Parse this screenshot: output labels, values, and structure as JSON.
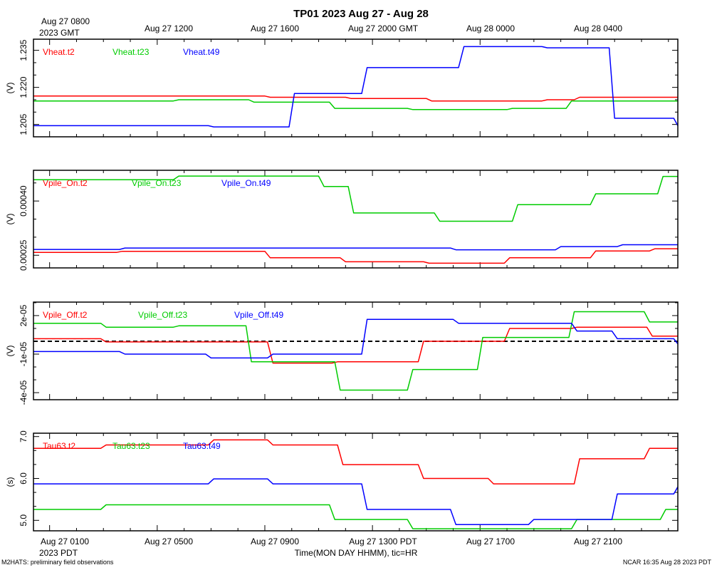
{
  "title": "TP01 2023 Aug 27 - Aug 28",
  "top_axis": {
    "first_label_line1": "Aug 27 0800",
    "first_label_line2": "2023 GMT",
    "labels": [
      "Aug 27 1200",
      "Aug 27 1600",
      "Aug 27 2000 GMT",
      "Aug 28 0000",
      "Aug 28 0400"
    ]
  },
  "bottom_axis": {
    "first_label_line1": "Aug 27 0100",
    "first_label_line2": "2023 PDT",
    "labels": [
      "Aug 27 0500",
      "Aug 27 0900",
      "Aug 27 1300 PDT",
      "Aug 27 1700",
      "Aug 27 2100"
    ],
    "xlabel": "Time(MON DAY HHMM), tic=HR"
  },
  "footer": {
    "left": "M2HATS: preliminary field observations",
    "right": "NCAR 16:35 Aug 28 2023 PDT"
  },
  "colors": {
    "t2": "#ff0000",
    "t23": "#00cc00",
    "t49": "#0000ff"
  },
  "chart_data": [
    {
      "type": "line",
      "x_unit": "hours since Aug 27 0100 PDT",
      "xlim": [
        -0.6,
        23.35
      ],
      "ylabel": "(V)",
      "ylim": [
        1.2,
        1.2395
      ],
      "yticks": [
        1.205,
        1.22,
        1.235
      ],
      "ytick_labels": [
        "1.205",
        "1.220",
        "1.235"
      ],
      "series": [
        {
          "name": "Vheat.t2",
          "color": "#ff0000",
          "points": [
            [
              -0.6,
              1.2165
            ],
            [
              8,
              1.2165
            ],
            [
              8.2,
              1.216
            ],
            [
              11,
              1.216
            ],
            [
              11.2,
              1.2155
            ],
            [
              14,
              1.2155
            ],
            [
              14.2,
              1.2145
            ],
            [
              18.3,
              1.2145
            ],
            [
              18.5,
              1.215
            ],
            [
              19.5,
              1.215
            ],
            [
              19.7,
              1.216
            ],
            [
              23.35,
              1.216
            ]
          ]
        },
        {
          "name": "Vheat.t23",
          "color": "#00cc00",
          "points": [
            [
              -0.6,
              1.2145
            ],
            [
              4.6,
              1.2145
            ],
            [
              4.8,
              1.215
            ],
            [
              7.4,
              1.215
            ],
            [
              7.6,
              1.214
            ],
            [
              10.4,
              1.214
            ],
            [
              10.6,
              1.2115
            ],
            [
              13.3,
              1.2115
            ],
            [
              13.5,
              1.211
            ],
            [
              17,
              1.211
            ],
            [
              17.2,
              1.2115
            ],
            [
              19.2,
              1.2115
            ],
            [
              19.4,
              1.2145
            ],
            [
              23.35,
              1.2145
            ]
          ]
        },
        {
          "name": "Vheat.t49",
          "color": "#0000ff",
          "points": [
            [
              -0.6,
              1.2045
            ],
            [
              5.9,
              1.2045
            ],
            [
              6.1,
              1.204
            ],
            [
              8.9,
              1.204
            ],
            [
              9.1,
              1.2175
            ],
            [
              11.6,
              1.2175
            ],
            [
              11.8,
              1.228
            ],
            [
              15.2,
              1.228
            ],
            [
              15.4,
              1.2365
            ],
            [
              18.3,
              1.2365
            ],
            [
              18.5,
              1.236
            ],
            [
              20.8,
              1.236
            ],
            [
              21,
              1.2075
            ],
            [
              23.2,
              1.2075
            ],
            [
              23.35,
              1.2045
            ]
          ]
        }
      ]
    },
    {
      "type": "line",
      "x_unit": "hours since Aug 27 0100 PDT",
      "xlim": [
        -0.6,
        23.35
      ],
      "ylabel": "(V)",
      "ylim": [
        0.000215,
        0.000485
      ],
      "yticks": [
        0.00025,
        0.0004
      ],
      "ytick_labels": [
        "0.00025",
        "0.00040"
      ],
      "series": [
        {
          "name": "Vpile_On.t2",
          "color": "#ff0000",
          "points": [
            [
              -0.6,
              0.000258
            ],
            [
              2.5,
              0.000258
            ],
            [
              2.7,
              0.000261
            ],
            [
              8,
              0.000261
            ],
            [
              8.2,
              0.000243
            ],
            [
              10.8,
              0.000243
            ],
            [
              11,
              0.000232
            ],
            [
              13.9,
              0.000232
            ],
            [
              14.1,
              0.000228
            ],
            [
              16.9,
              0.000228
            ],
            [
              17.1,
              0.000243
            ],
            [
              20.1,
              0.000243
            ],
            [
              20.3,
              0.000262
            ],
            [
              22.3,
              0.000262
            ],
            [
              22.5,
              0.000268
            ],
            [
              23.35,
              0.000268
            ]
          ]
        },
        {
          "name": "Vpile_On.t23",
          "color": "#00cc00",
          "points": [
            [
              -0.6,
              0.000459
            ],
            [
              4.6,
              0.000459
            ],
            [
              4.8,
              0.000469
            ],
            [
              10,
              0.000469
            ],
            [
              10.2,
              0.00044
            ],
            [
              11.1,
              0.00044
            ],
            [
              11.3,
              0.000367
            ],
            [
              14.3,
              0.000367
            ],
            [
              14.5,
              0.000344
            ],
            [
              17.2,
              0.000344
            ],
            [
              17.4,
              0.00039
            ],
            [
              20.1,
              0.00039
            ],
            [
              20.3,
              0.00042
            ],
            [
              22.6,
              0.00042
            ],
            [
              22.8,
              0.000468
            ],
            [
              23.35,
              0.000468
            ]
          ]
        },
        {
          "name": "Vpile_On.t49",
          "color": "#0000ff",
          "points": [
            [
              -0.6,
              0.000266
            ],
            [
              2.6,
              0.000266
            ],
            [
              2.8,
              0.00027
            ],
            [
              14.9,
              0.00027
            ],
            [
              15.1,
              0.000265
            ],
            [
              18.8,
              0.000265
            ],
            [
              19,
              0.000274
            ],
            [
              21.1,
              0.000274
            ],
            [
              21.3,
              0.000279
            ],
            [
              23.35,
              0.000279
            ]
          ]
        }
      ]
    },
    {
      "type": "line",
      "x_unit": "hours since Aug 27 0100 PDT",
      "xlim": [
        -0.6,
        23.35
      ],
      "ylabel": "(V)",
      "ylim": [
        -4.55e-05,
        3.05e-05
      ],
      "yticks": [
        -4e-05,
        -1e-05,
        2e-05
      ],
      "ytick_labels": [
        "-4e-05",
        "-1e-05",
        "2e-05"
      ],
      "reference_line": 0,
      "series": [
        {
          "name": "Vpile_Off.t2",
          "color": "#ff0000",
          "points": [
            [
              -0.6,
              2e-06
            ],
            [
              1.9,
              2e-06
            ],
            [
              2.1,
              -5e-07
            ],
            [
              8.1,
              -5e-07
            ],
            [
              8.3,
              -1.7e-05
            ],
            [
              10.5,
              -1.7e-05
            ],
            [
              10.7,
              -1.6e-05
            ],
            [
              13.7,
              -1.6e-05
            ],
            [
              13.9,
              0
            ],
            [
              16.9,
              0
            ],
            [
              17.1,
              1e-05
            ],
            [
              19.4,
              1e-05
            ],
            [
              19.6,
              1.1e-05
            ],
            [
              22.2,
              1.1e-05
            ],
            [
              22.4,
              4e-06
            ],
            [
              23.35,
              4e-06
            ]
          ]
        },
        {
          "name": "Vpile_Off.t23",
          "color": "#00cc00",
          "points": [
            [
              -0.6,
              1.4e-05
            ],
            [
              1.9,
              1.4e-05
            ],
            [
              2.1,
              1.1e-05
            ],
            [
              4.6,
              1.1e-05
            ],
            [
              4.8,
              1.2e-05
            ],
            [
              7.3,
              1.2e-05
            ],
            [
              7.5,
              -1.6e-05
            ],
            [
              10.6,
              -1.6e-05
            ],
            [
              10.8,
              -3.8e-05
            ],
            [
              13.3,
              -3.8e-05
            ],
            [
              13.5,
              -2.2e-05
            ],
            [
              15.9,
              -2.2e-05
            ],
            [
              16.1,
              3e-06
            ],
            [
              19.3,
              3e-06
            ],
            [
              19.5,
              2.3e-05
            ],
            [
              22.1,
              2.3e-05
            ],
            [
              22.3,
              1.5e-05
            ],
            [
              23.35,
              1.5e-05
            ]
          ]
        },
        {
          "name": "Vpile_Off.t49",
          "color": "#0000ff",
          "points": [
            [
              -0.6,
              -8e-06
            ],
            [
              2.6,
              -8e-06
            ],
            [
              2.8,
              -1e-05
            ],
            [
              5.8,
              -1e-05
            ],
            [
              6,
              -1.3e-05
            ],
            [
              8.1,
              -1.3e-05
            ],
            [
              8.3,
              -1e-05
            ],
            [
              11.6,
              -1e-05
            ],
            [
              11.8,
              1.7e-05
            ],
            [
              15,
              1.7e-05
            ],
            [
              15.2,
              1.4e-05
            ],
            [
              19.4,
              1.4e-05
            ],
            [
              19.6,
              8e-06
            ],
            [
              20.9,
              8e-06
            ],
            [
              21.1,
              2e-06
            ],
            [
              23.2,
              2e-06
            ],
            [
              23.35,
              -2e-06
            ]
          ]
        }
      ]
    },
    {
      "type": "line",
      "x_unit": "hours since Aug 27 0100 PDT",
      "xlim": [
        -0.6,
        23.35
      ],
      "ylabel": "(s)",
      "ylim": [
        4.75,
        7.08
      ],
      "yticks": [
        5.0,
        6.0,
        7.0
      ],
      "ytick_labels": [
        "5.0",
        "6.0",
        "7.0"
      ],
      "series": [
        {
          "name": "Tau63.t2",
          "color": "#ff0000",
          "points": [
            [
              -0.6,
              6.72
            ],
            [
              1.9,
              6.72
            ],
            [
              2.1,
              6.8
            ],
            [
              5.9,
              6.8
            ],
            [
              6.1,
              6.92
            ],
            [
              8.1,
              6.92
            ],
            [
              8.3,
              6.8
            ],
            [
              10.7,
              6.8
            ],
            [
              10.9,
              6.33
            ],
            [
              13.7,
              6.33
            ],
            [
              13.9,
              6.0
            ],
            [
              16.3,
              6.0
            ],
            [
              16.5,
              5.87
            ],
            [
              19.5,
              5.87
            ],
            [
              19.7,
              6.47
            ],
            [
              22.1,
              6.47
            ],
            [
              22.3,
              6.72
            ],
            [
              23.35,
              6.72
            ]
          ]
        },
        {
          "name": "Tau63.t23",
          "color": "#00cc00",
          "points": [
            [
              -0.6,
              5.26
            ],
            [
              1.9,
              5.26
            ],
            [
              2.1,
              5.37
            ],
            [
              10.4,
              5.37
            ],
            [
              10.6,
              5.02
            ],
            [
              13.3,
              5.02
            ],
            [
              13.5,
              4.8
            ],
            [
              19.4,
              4.8
            ],
            [
              19.6,
              5.02
            ],
            [
              22.7,
              5.02
            ],
            [
              22.9,
              5.26
            ],
            [
              23.35,
              5.26
            ]
          ]
        },
        {
          "name": "Tau63.t49",
          "color": "#0000ff",
          "points": [
            [
              -0.6,
              5.87
            ],
            [
              5.9,
              5.87
            ],
            [
              6.1,
              5.99
            ],
            [
              8.1,
              5.99
            ],
            [
              8.3,
              5.87
            ],
            [
              11.6,
              5.87
            ],
            [
              11.8,
              5.26
            ],
            [
              14.9,
              5.26
            ],
            [
              15.1,
              4.9
            ],
            [
              17.8,
              4.9
            ],
            [
              18,
              5.02
            ],
            [
              20.9,
              5.02
            ],
            [
              21.1,
              5.63
            ],
            [
              23.2,
              5.63
            ],
            [
              23.35,
              5.8
            ]
          ]
        }
      ]
    }
  ]
}
